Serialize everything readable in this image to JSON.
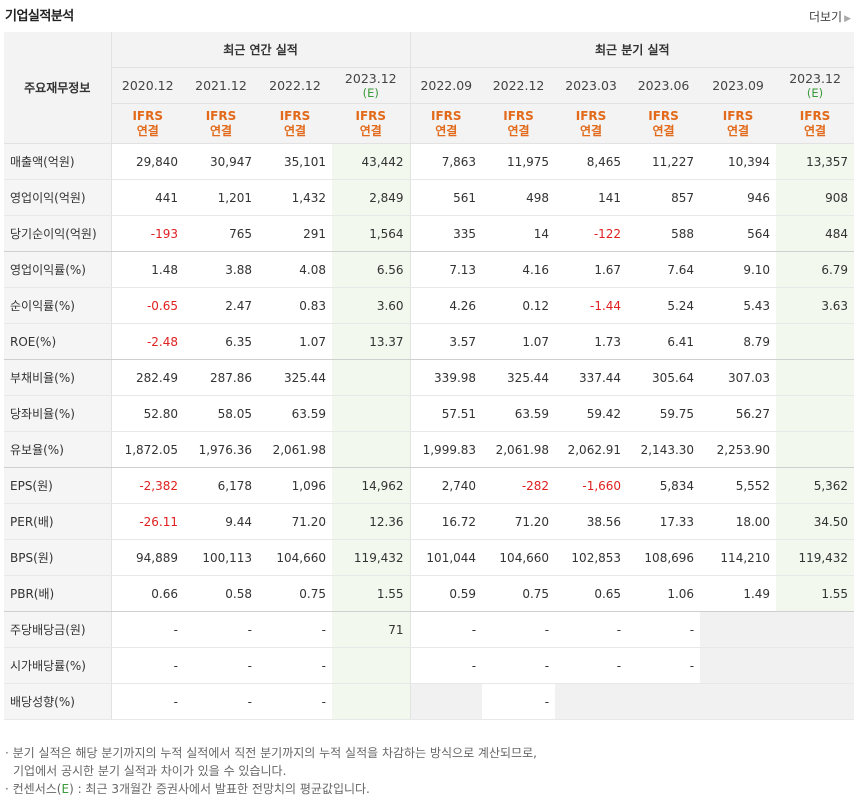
{
  "title": "기업실적분석",
  "more_label": "더보기",
  "header": {
    "row_label": "주요재무정보",
    "annual_label": "최근 연간 실적",
    "quarter_label": "최근 분기 실적",
    "periods": [
      {
        "date": "2020.12",
        "est": "",
        "basis1": "IFRS",
        "basis2": "연결"
      },
      {
        "date": "2021.12",
        "est": "",
        "basis1": "IFRS",
        "basis2": "연결"
      },
      {
        "date": "2022.12",
        "est": "",
        "basis1": "IFRS",
        "basis2": "연결"
      },
      {
        "date": "2023.12",
        "est": "(E)",
        "basis1": "IFRS",
        "basis2": "연결"
      },
      {
        "date": "2022.09",
        "est": "",
        "basis1": "IFRS",
        "basis2": "연결"
      },
      {
        "date": "2022.12",
        "est": "",
        "basis1": "IFRS",
        "basis2": "연결"
      },
      {
        "date": "2023.03",
        "est": "",
        "basis1": "IFRS",
        "basis2": "연결"
      },
      {
        "date": "2023.06",
        "est": "",
        "basis1": "IFRS",
        "basis2": "연결"
      },
      {
        "date": "2023.09",
        "est": "",
        "basis1": "IFRS",
        "basis2": "연결"
      },
      {
        "date": "2023.12",
        "est": "(E)",
        "basis1": "IFRS",
        "basis2": "연결"
      }
    ]
  },
  "rows": [
    {
      "label": "매출액(억원)",
      "values": [
        "29,840",
        "30,947",
        "35,101",
        "43,442",
        "7,863",
        "11,975",
        "8,465",
        "11,227",
        "10,394",
        "13,357"
      ]
    },
    {
      "label": "영업이익(억원)",
      "values": [
        "441",
        "1,201",
        "1,432",
        "2,849",
        "561",
        "498",
        "141",
        "857",
        "946",
        "908"
      ]
    },
    {
      "label": "당기순이익(억원)",
      "values": [
        "-193",
        "765",
        "291",
        "1,564",
        "335",
        "14",
        "-122",
        "588",
        "564",
        "484"
      ]
    },
    {
      "label": "영업이익률(%)",
      "values": [
        "1.48",
        "3.88",
        "4.08",
        "6.56",
        "7.13",
        "4.16",
        "1.67",
        "7.64",
        "9.10",
        "6.79"
      ]
    },
    {
      "label": "순이익률(%)",
      "values": [
        "-0.65",
        "2.47",
        "0.83",
        "3.60",
        "4.26",
        "0.12",
        "-1.44",
        "5.24",
        "5.43",
        "3.63"
      ]
    },
    {
      "label": "ROE(%)",
      "values": [
        "-2.48",
        "6.35",
        "1.07",
        "13.37",
        "3.57",
        "1.07",
        "1.73",
        "6.41",
        "8.79",
        ""
      ]
    },
    {
      "label": "부채비율(%)",
      "values": [
        "282.49",
        "287.86",
        "325.44",
        "",
        "339.98",
        "325.44",
        "337.44",
        "305.64",
        "307.03",
        ""
      ]
    },
    {
      "label": "당좌비율(%)",
      "values": [
        "52.80",
        "58.05",
        "63.59",
        "",
        "57.51",
        "63.59",
        "59.42",
        "59.75",
        "56.27",
        ""
      ]
    },
    {
      "label": "유보율(%)",
      "values": [
        "1,872.05",
        "1,976.36",
        "2,061.98",
        "",
        "1,999.83",
        "2,061.98",
        "2,062.91",
        "2,143.30",
        "2,253.90",
        ""
      ]
    },
    {
      "label": "EPS(원)",
      "values": [
        "-2,382",
        "6,178",
        "1,096",
        "14,962",
        "2,740",
        "-282",
        "-1,660",
        "5,834",
        "5,552",
        "5,362"
      ]
    },
    {
      "label": "PER(배)",
      "values": [
        "-26.11",
        "9.44",
        "71.20",
        "12.36",
        "16.72",
        "71.20",
        "38.56",
        "17.33",
        "18.00",
        "34.50"
      ]
    },
    {
      "label": "BPS(원)",
      "values": [
        "94,889",
        "100,113",
        "104,660",
        "119,432",
        "101,044",
        "104,660",
        "102,853",
        "108,696",
        "114,210",
        "119,432"
      ]
    },
    {
      "label": "PBR(배)",
      "values": [
        "0.66",
        "0.58",
        "0.75",
        "1.55",
        "0.59",
        "0.75",
        "0.65",
        "1.06",
        "1.49",
        "1.55"
      ]
    },
    {
      "label": "주당배당금(원)",
      "values": [
        "-",
        "-",
        "-",
        "71",
        "-",
        "-",
        "-",
        "-",
        "",
        ""
      ]
    },
    {
      "label": "시가배당률(%)",
      "values": [
        "-",
        "-",
        "-",
        "",
        "-",
        "-",
        "-",
        "-",
        "",
        ""
      ]
    },
    {
      "label": "배당성향(%)",
      "values": [
        "-",
        "-",
        "-",
        "",
        "",
        "-",
        "",
        "",
        "",
        ""
      ]
    }
  ],
  "notes": {
    "line1": "· 분기 실적은 해당 분기까지의 누적 실적에서 직전 분기까지의 누적 실적을 차감하는 방식으로 계산되므로,",
    "line2": "기업에서 공시한 분기 실적과 차이가 있을 수 있습니다.",
    "line3_pre": "· 컨센서스(",
    "line3_e": "E",
    "line3_post": ") : 최근 3개월간 증권사에서 발표한 전망치의 평균값입니다."
  }
}
